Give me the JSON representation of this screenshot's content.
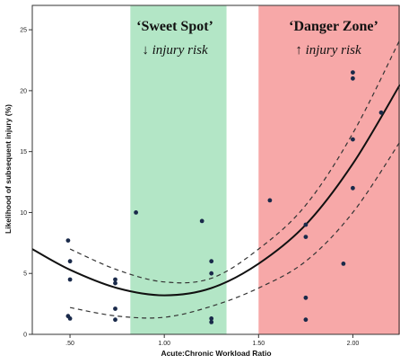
{
  "chart_data": {
    "type": "scatter",
    "xlabel": "Acute:Chronic Workload Ratio",
    "ylabel": "Likelihood of subsequent injury (%)",
    "xlim": [
      0.3,
      2.25
    ],
    "ylim": [
      0,
      27
    ],
    "x_ticks": [
      0.5,
      1.0,
      1.5,
      2.0
    ],
    "x_tick_labels": [
      ".50",
      "1.00",
      "1.50",
      "2.00"
    ],
    "y_ticks": [
      0,
      5,
      10,
      15,
      20,
      25
    ],
    "y_tick_labels": [
      "0",
      "5",
      "10",
      "15",
      "20",
      "25"
    ],
    "grid": false,
    "zones": [
      {
        "title": "‘Sweet Spot’",
        "subtitle": "↓ injury risk",
        "x_range": [
          0.82,
          1.33
        ],
        "color": "#b3e6c6"
      },
      {
        "title": "‘Danger Zone’",
        "subtitle": "↑ injury risk",
        "x_range": [
          1.5,
          2.25
        ],
        "color": "#f7a8a8"
      }
    ],
    "points": {
      "color": "#1a2a4a",
      "x": [
        0.49,
        0.5,
        0.5,
        0.49,
        0.5,
        0.74,
        0.74,
        0.74,
        0.74,
        0.85,
        1.2,
        1.25,
        1.25,
        1.25,
        1.25,
        1.56,
        1.75,
        1.75,
        1.75,
        1.75,
        1.95,
        2.0,
        2.0,
        2.0,
        2.0,
        2.15
      ],
      "y": [
        7.7,
        6.0,
        4.5,
        1.5,
        1.3,
        4.5,
        4.2,
        2.1,
        1.2,
        10.0,
        9.3,
        6.0,
        5.0,
        1.3,
        1.0,
        11.0,
        9.0,
        8.0,
        3.0,
        1.2,
        5.8,
        21.5,
        21.0,
        16.0,
        12.0,
        18.2
      ]
    },
    "fit": {
      "style": "solid",
      "color": "#111111",
      "x": [
        0.3,
        0.5,
        0.75,
        1.0,
        1.25,
        1.5,
        1.75,
        2.0,
        2.25
      ],
      "y": [
        7.0,
        5.3,
        3.8,
        3.2,
        3.8,
        5.8,
        9.0,
        14.0,
        20.5
      ]
    },
    "ci_upper": {
      "style": "dashed",
      "color": "#333333",
      "x": [
        0.5,
        0.75,
        1.0,
        1.25,
        1.5,
        1.75,
        2.0,
        2.25
      ],
      "y": [
        7.0,
        5.3,
        4.3,
        4.6,
        7.0,
        10.6,
        16.5,
        24.2
      ]
    },
    "ci_lower": {
      "style": "dashed",
      "color": "#333333",
      "x": [
        0.5,
        0.75,
        1.0,
        1.25,
        1.5,
        1.75,
        2.0,
        2.25
      ],
      "y": [
        2.2,
        1.5,
        1.4,
        2.3,
        3.8,
        6.0,
        10.0,
        15.8
      ]
    }
  }
}
